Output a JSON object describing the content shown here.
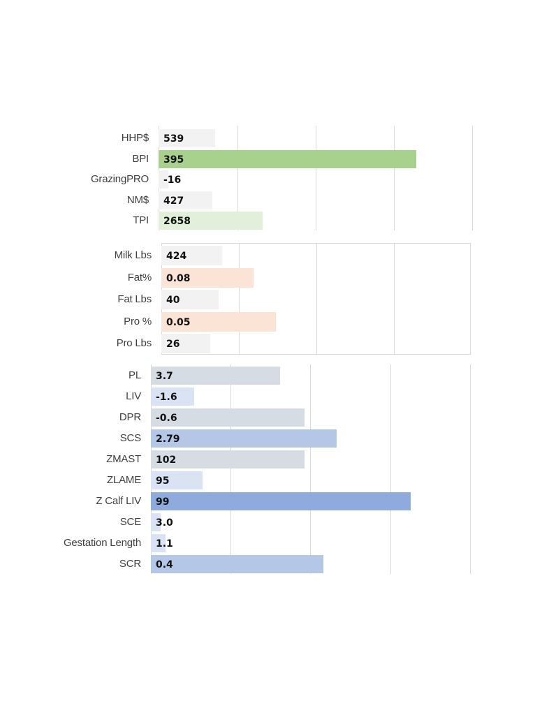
{
  "chart_data": [
    {
      "type": "bar",
      "orientation": "horizontal",
      "title": "",
      "xlabel": "",
      "ylabel": "",
      "grid": true,
      "categories": [
        "HHP$",
        "BPI",
        "GrazingPRO",
        "NM$",
        "TPI"
      ],
      "values": [
        "539",
        "395",
        "-16",
        "427",
        "2658"
      ],
      "bar_lengths": [
        0.18,
        0.82,
        0.03,
        0.17,
        0.33
      ],
      "colors": [
        "#f2f2f2",
        "#a9d18e",
        "#f2f2f2",
        "#f2f2f2",
        "#e2efda"
      ]
    },
    {
      "type": "bar",
      "orientation": "horizontal",
      "title": "",
      "xlabel": "",
      "ylabel": "",
      "grid": true,
      "categories": [
        "Milk Lbs",
        "Fat%",
        "Fat Lbs",
        "Pro %",
        "Pro Lbs"
      ],
      "values": [
        "424",
        "0.08",
        "40",
        "0.05",
        "26"
      ],
      "bar_lengths": [
        0.197,
        0.297,
        0.186,
        0.37,
        0.157
      ],
      "colors": [
        "#f2f2f2",
        "#fbe4d5",
        "#f2f2f2",
        "#fbe4d5",
        "#f2f2f2"
      ]
    },
    {
      "type": "bar",
      "orientation": "horizontal",
      "title": "",
      "xlabel": "",
      "ylabel": "",
      "grid": true,
      "categories": [
        "PL",
        "LIV",
        "DPR",
        "SCS",
        "ZMAST",
        "ZLAME",
        "Z Calf LIV",
        "SCE",
        "Gestation Length",
        "SCR"
      ],
      "values": [
        "3.7",
        "-1.6",
        "-0.6",
        "2.79",
        "102",
        "95",
        "99",
        "3.0",
        "1.1",
        "0.4"
      ],
      "bar_lengths": [
        0.405,
        0.136,
        0.48,
        0.58,
        0.48,
        0.162,
        0.812,
        0.031,
        0.046,
        0.54
      ],
      "colors": [
        "#d6dce4",
        "#dae3f3",
        "#d6dce4",
        "#b4c7e7",
        "#d6dce4",
        "#dae3f3",
        "#8faadc",
        "#dae3f3",
        "#dae3f3",
        "#b4c7e7"
      ]
    }
  ]
}
